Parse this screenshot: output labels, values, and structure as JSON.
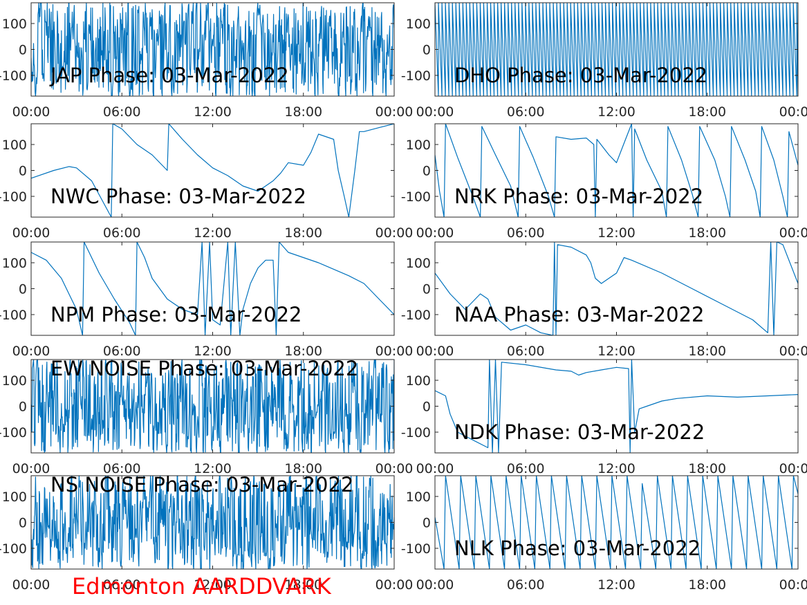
{
  "footer": {
    "label": "Edmonton AARDDVARK",
    "color": "#ff0000"
  },
  "trace_color": "#0072bd",
  "chart_data": [
    {
      "type": "line",
      "title": "JAP Phase: 03-Mar-2022",
      "x_unit": "hour",
      "xlim": [
        0,
        24
      ],
      "ylim": [
        -180,
        180
      ],
      "xticks": [
        "00:00",
        "06:00",
        "12:00",
        "18:00",
        "00:00"
      ],
      "yticks": [
        100,
        0,
        -100
      ],
      "ytick_labels": [
        "100",
        "0",
        "-100"
      ],
      "pattern": "noise",
      "points": [
        [
          0,
          -150
        ],
        [
          1,
          160
        ],
        [
          2,
          -120
        ],
        [
          4,
          150
        ],
        [
          6,
          -170
        ],
        [
          8,
          170
        ],
        [
          10,
          -160
        ],
        [
          12,
          150
        ],
        [
          14,
          -170
        ],
        [
          16,
          160
        ],
        [
          18,
          -150
        ],
        [
          20,
          170
        ],
        [
          22,
          -160
        ],
        [
          24,
          150
        ]
      ]
    },
    {
      "type": "line",
      "title": "DHO Phase: 03-Mar-2022",
      "x_unit": "hour",
      "xlim": [
        0,
        24
      ],
      "ylim": [
        -180,
        180
      ],
      "xticks": [
        "00:00",
        "06:00",
        "12:00",
        "18:00",
        "00:00"
      ],
      "yticks": [
        100,
        0,
        -100
      ],
      "ytick_labels": [
        "100",
        "0",
        "-100"
      ],
      "pattern": "fast-wrap",
      "points": [
        [
          0,
          -180
        ],
        [
          7.5,
          -50
        ],
        [
          8,
          180
        ],
        [
          24,
          -180
        ]
      ]
    },
    {
      "type": "line",
      "title": "NWC Phase: 03-Mar-2022",
      "x_unit": "hour",
      "xlim": [
        0,
        24
      ],
      "ylim": [
        -180,
        180
      ],
      "xticks": [
        "00:00",
        "06:00",
        "12:00",
        "18:00",
        "00:00"
      ],
      "yticks": [
        100,
        0,
        -100
      ],
      "ytick_labels": [
        "100",
        "0",
        "-100"
      ],
      "points": [
        [
          0,
          -30
        ],
        [
          1.5,
          0
        ],
        [
          2.5,
          15
        ],
        [
          3,
          10
        ],
        [
          4,
          -40
        ],
        [
          5.3,
          -180
        ],
        [
          5.4,
          180
        ],
        [
          6,
          160
        ],
        [
          7,
          100
        ],
        [
          8,
          60
        ],
        [
          9,
          0
        ],
        [
          9.1,
          180
        ],
        [
          10,
          120
        ],
        [
          11,
          60
        ],
        [
          12,
          10
        ],
        [
          13,
          -20
        ],
        [
          14,
          -60
        ],
        [
          15,
          -80
        ],
        [
          16,
          -40
        ],
        [
          16.5,
          -10
        ],
        [
          17,
          30
        ],
        [
          18,
          20
        ],
        [
          18.5,
          70
        ],
        [
          19,
          140
        ],
        [
          20,
          120
        ],
        [
          20.3,
          0
        ],
        [
          20.7,
          -100
        ],
        [
          21,
          -180
        ],
        [
          21.4,
          0
        ],
        [
          21.7,
          150
        ],
        [
          22,
          150
        ],
        [
          23,
          165
        ],
        [
          24,
          180
        ]
      ]
    },
    {
      "type": "line",
      "title": "NRK Phase: 03-Mar-2022",
      "x_unit": "hour",
      "xlim": [
        0,
        24
      ],
      "ylim": [
        -180,
        180
      ],
      "xticks": [
        "00:00",
        "06:00",
        "12:00",
        "18:00",
        "00:00"
      ],
      "yticks": [
        100,
        0,
        -100
      ],
      "ytick_labels": [
        "100",
        "0",
        "-100"
      ],
      "points": [
        [
          0,
          60
        ],
        [
          0.3,
          -80
        ],
        [
          0.6,
          -180
        ],
        [
          0.7,
          180
        ],
        [
          1.5,
          50
        ],
        [
          2.5,
          -100
        ],
        [
          3,
          -180
        ],
        [
          3.1,
          170
        ],
        [
          4,
          60
        ],
        [
          5,
          -60
        ],
        [
          5.5,
          -180
        ],
        [
          5.6,
          170
        ],
        [
          6.5,
          50
        ],
        [
          7.5,
          -100
        ],
        [
          7.9,
          -180
        ],
        [
          8,
          130
        ],
        [
          9,
          120
        ],
        [
          10,
          125
        ],
        [
          10.5,
          100
        ],
        [
          10.6,
          -180
        ],
        [
          10.7,
          120
        ],
        [
          11.5,
          60
        ],
        [
          12,
          30
        ],
        [
          12.6,
          120
        ],
        [
          13,
          180
        ],
        [
          13.1,
          -180
        ],
        [
          13.2,
          160
        ],
        [
          14,
          40
        ],
        [
          15,
          -80
        ],
        [
          15.3,
          -180
        ],
        [
          15.4,
          170
        ],
        [
          16.3,
          40
        ],
        [
          17,
          -90
        ],
        [
          17.4,
          -180
        ],
        [
          17.5,
          170
        ],
        [
          18.5,
          40
        ],
        [
          19.2,
          -100
        ],
        [
          19.5,
          -180
        ],
        [
          19.6,
          170
        ],
        [
          20.5,
          40
        ],
        [
          21.2,
          -80
        ],
        [
          21.5,
          -180
        ],
        [
          21.6,
          170
        ],
        [
          22.4,
          40
        ],
        [
          23,
          -100
        ],
        [
          23.3,
          -180
        ],
        [
          23.4,
          150
        ],
        [
          24,
          20
        ]
      ]
    },
    {
      "type": "line",
      "title": "NPM Phase: 03-Mar-2022",
      "x_unit": "hour",
      "xlim": [
        0,
        24
      ],
      "ylim": [
        -180,
        180
      ],
      "xticks": [
        "00:00",
        "06:00",
        "12:00",
        "18:00",
        "00:00"
      ],
      "yticks": [
        100,
        0,
        -100
      ],
      "ytick_labels": [
        "100",
        "0",
        "-100"
      ],
      "points": [
        [
          0,
          140
        ],
        [
          1,
          110
        ],
        [
          2,
          40
        ],
        [
          3,
          -80
        ],
        [
          3.4,
          -180
        ],
        [
          3.5,
          180
        ],
        [
          4.5,
          60
        ],
        [
          5.5,
          -40
        ],
        [
          6.5,
          -130
        ],
        [
          6.9,
          -180
        ],
        [
          7,
          180
        ],
        [
          7.5,
          120
        ],
        [
          8,
          40
        ],
        [
          9,
          -40
        ],
        [
          10,
          -80
        ],
        [
          11,
          -100
        ],
        [
          11.3,
          180
        ],
        [
          11.5,
          -180
        ],
        [
          11.8,
          180
        ],
        [
          12,
          -120
        ],
        [
          12.5,
          -140
        ],
        [
          13,
          180
        ],
        [
          13.2,
          -180
        ],
        [
          13.5,
          180
        ],
        [
          13.8,
          -180
        ],
        [
          14,
          -80
        ],
        [
          14.5,
          20
        ],
        [
          15,
          80
        ],
        [
          15.5,
          110
        ],
        [
          16,
          110
        ],
        [
          16.2,
          -180
        ],
        [
          16.4,
          180
        ],
        [
          17,
          140
        ],
        [
          19,
          100
        ],
        [
          21,
          50
        ],
        [
          22,
          20
        ],
        [
          23,
          -40
        ],
        [
          24,
          -100
        ]
      ]
    },
    {
      "type": "line",
      "title": "NAA Phase: 03-Mar-2022",
      "x_unit": "hour",
      "xlim": [
        0,
        24
      ],
      "ylim": [
        -180,
        180
      ],
      "xticks": [
        "00:00",
        "06:00",
        "12:00",
        "18:00",
        "00:00"
      ],
      "yticks": [
        100,
        0,
        -100
      ],
      "ytick_labels": [
        "100",
        "0",
        "-100"
      ],
      "points": [
        [
          0,
          60
        ],
        [
          1,
          -20
        ],
        [
          2,
          -80
        ],
        [
          3,
          -20
        ],
        [
          3.5,
          -40
        ],
        [
          4,
          -110
        ],
        [
          5,
          -160
        ],
        [
          6,
          -140
        ],
        [
          7,
          -170
        ],
        [
          7.8,
          -180
        ],
        [
          7.9,
          180
        ],
        [
          8,
          -180
        ],
        [
          8.1,
          170
        ],
        [
          9,
          160
        ],
        [
          10,
          130
        ],
        [
          10.3,
          100
        ],
        [
          10.6,
          40
        ],
        [
          11,
          20
        ],
        [
          12,
          60
        ],
        [
          12.5,
          120
        ],
        [
          13,
          110
        ],
        [
          15,
          60
        ],
        [
          17,
          0
        ],
        [
          19,
          -60
        ],
        [
          21,
          -120
        ],
        [
          22,
          -170
        ],
        [
          22.2,
          180
        ],
        [
          22.4,
          -180
        ],
        [
          22.6,
          180
        ],
        [
          23,
          170
        ],
        [
          24,
          20
        ]
      ]
    },
    {
      "type": "line",
      "title": "EW NOISE Phase: 03-Mar-2022",
      "x_unit": "hour",
      "xlim": [
        0,
        24
      ],
      "ylim": [
        -180,
        180
      ],
      "xticks": [
        "00:00",
        "06:00",
        "12:00",
        "18:00",
        "00:00"
      ],
      "yticks": [
        100,
        0,
        -100
      ],
      "ytick_labels": [
        "100",
        "0",
        "-100"
      ],
      "pattern": "noise",
      "points": [
        [
          0,
          100
        ],
        [
          2,
          -150
        ],
        [
          4,
          160
        ],
        [
          6,
          -120
        ],
        [
          8,
          150
        ],
        [
          10,
          -160
        ],
        [
          12,
          140
        ],
        [
          14,
          -170
        ],
        [
          16,
          150
        ],
        [
          18,
          -160
        ],
        [
          20,
          170
        ],
        [
          22,
          -150
        ],
        [
          24,
          160
        ]
      ]
    },
    {
      "type": "line",
      "title": "NDK Phase: 03-Mar-2022",
      "x_unit": "hour",
      "xlim": [
        0,
        24
      ],
      "ylim": [
        -180,
        180
      ],
      "xticks": [
        "00:00",
        "06:00",
        "12:00",
        "18:00",
        "00:00"
      ],
      "yticks": [
        100,
        0,
        -100
      ],
      "ytick_labels": [
        "100",
        "0",
        "-100"
      ],
      "points": [
        [
          0,
          60
        ],
        [
          0.7,
          40
        ],
        [
          1,
          -30
        ],
        [
          1.5,
          -100
        ],
        [
          2.5,
          -130
        ],
        [
          3.5,
          -160
        ],
        [
          3.6,
          180
        ],
        [
          3.8,
          -180
        ],
        [
          4,
          180
        ],
        [
          4.2,
          -180
        ],
        [
          4.4,
          170
        ],
        [
          6,
          160
        ],
        [
          8,
          140
        ],
        [
          9,
          135
        ],
        [
          9.5,
          120
        ],
        [
          10,
          130
        ],
        [
          11,
          140
        ],
        [
          12,
          150
        ],
        [
          12.8,
          145
        ],
        [
          12.9,
          -180
        ],
        [
          13,
          180
        ],
        [
          13.2,
          -100
        ],
        [
          13.5,
          -10
        ],
        [
          14,
          0
        ],
        [
          15,
          20
        ],
        [
          16,
          30
        ],
        [
          18,
          40
        ],
        [
          20,
          35
        ],
        [
          22,
          40
        ],
        [
          24,
          45
        ]
      ]
    },
    {
      "type": "line",
      "title": "NS NOISE Phase: 03-Mar-2022",
      "x_unit": "hour",
      "xlim": [
        0,
        24
      ],
      "ylim": [
        -180,
        180
      ],
      "xticks": [
        "00:00",
        "06:00",
        "12:00",
        "18:00",
        "00:00"
      ],
      "yticks": [
        100,
        0,
        -100
      ],
      "ytick_labels": [
        "100",
        "0",
        "-100"
      ],
      "pattern": "noise",
      "points": [
        [
          0,
          40
        ],
        [
          2,
          -150
        ],
        [
          4,
          160
        ],
        [
          6,
          -130
        ],
        [
          8,
          150
        ],
        [
          10,
          -160
        ],
        [
          12,
          140
        ],
        [
          14,
          -170
        ],
        [
          16,
          160
        ],
        [
          18,
          -150
        ],
        [
          20,
          170
        ],
        [
          22,
          -160
        ],
        [
          24,
          -80
        ]
      ]
    },
    {
      "type": "line",
      "title": "NLK Phase: 03-Mar-2022",
      "x_unit": "hour",
      "xlim": [
        0,
        24
      ],
      "ylim": [
        -180,
        180
      ],
      "xticks": [
        "00:00",
        "06:00",
        "12:00",
        "18:00",
        "00:00"
      ],
      "yticks": [
        100,
        0,
        -100
      ],
      "ytick_labels": [
        "100",
        "0",
        "-100"
      ],
      "points": [
        [
          0,
          20
        ],
        [
          0.6,
          -180
        ],
        [
          0.7,
          180
        ],
        [
          1.6,
          -180
        ],
        [
          1.7,
          180
        ],
        [
          2.6,
          -180
        ],
        [
          2.7,
          180
        ],
        [
          3.6,
          -180
        ],
        [
          3.7,
          180
        ],
        [
          4.6,
          -180
        ],
        [
          4.7,
          180
        ],
        [
          5.6,
          -180
        ],
        [
          5.7,
          180
        ],
        [
          6.6,
          -180
        ],
        [
          6.7,
          180
        ],
        [
          7.6,
          -180
        ],
        [
          7.7,
          180
        ],
        [
          8.6,
          -180
        ],
        [
          8.7,
          180
        ],
        [
          9.6,
          -180
        ],
        [
          9.7,
          180
        ],
        [
          10.6,
          -180
        ],
        [
          10.7,
          180
        ],
        [
          11.6,
          -180
        ],
        [
          11.7,
          180
        ],
        [
          12.6,
          -180
        ],
        [
          12.7,
          180
        ],
        [
          13.6,
          -180
        ],
        [
          13.7,
          150
        ],
        [
          14.6,
          -180
        ],
        [
          14.7,
          180
        ],
        [
          15.6,
          -180
        ],
        [
          15.7,
          180
        ],
        [
          16.6,
          -180
        ],
        [
          16.7,
          180
        ],
        [
          17.6,
          -180
        ],
        [
          17.7,
          180
        ],
        [
          18.6,
          -180
        ],
        [
          18.7,
          180
        ],
        [
          19.6,
          -180
        ],
        [
          19.7,
          180
        ],
        [
          20.6,
          -180
        ],
        [
          20.7,
          180
        ],
        [
          21.6,
          -180
        ],
        [
          21.7,
          180
        ],
        [
          22.6,
          -180
        ],
        [
          22.7,
          180
        ],
        [
          23.6,
          -180
        ],
        [
          23.7,
          180
        ],
        [
          24,
          110
        ]
      ]
    }
  ]
}
